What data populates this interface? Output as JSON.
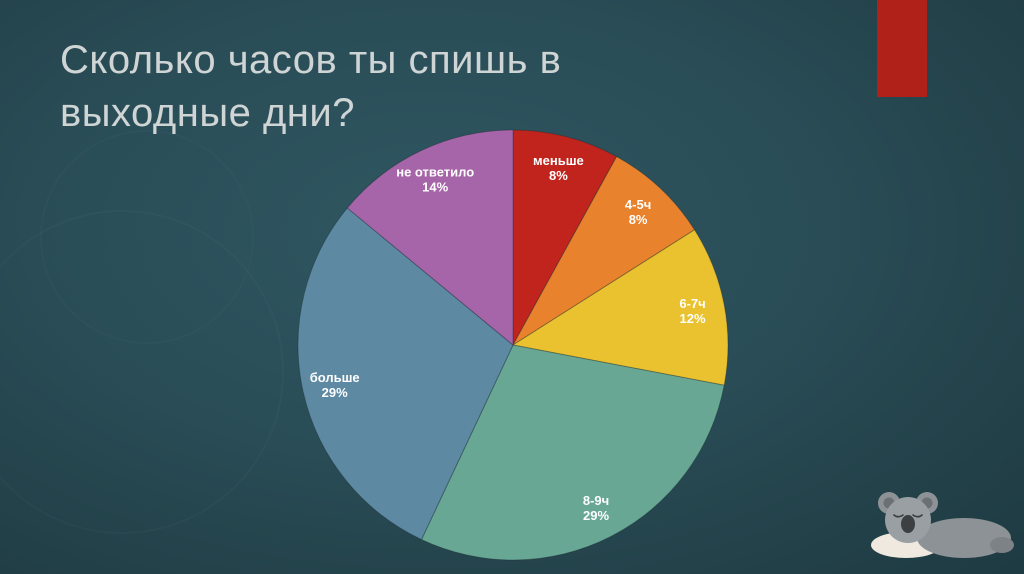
{
  "slide": {
    "title_line1": "Сколько часов ты спишь в",
    "title_line2": "выходные дни?",
    "title_color": "#cfd4d4",
    "background_color": "#294c56",
    "accent_bar_color": "#b02219"
  },
  "chart_data": {
    "type": "pie",
    "title": "Сколько часов ты спишь в выходные дни?",
    "start_angle_deg": 0,
    "direction": "clockwise",
    "legend": "none",
    "label_style": "inside-end, white, bold, label + percent",
    "label_color": "#ffffff",
    "slices": [
      {
        "label": "меньше",
        "value": 8,
        "percent_text": "8%",
        "color": "#c1241d"
      },
      {
        "label": "4-5ч",
        "value": 8,
        "percent_text": "8%",
        "color": "#e8822c"
      },
      {
        "label": "6-7ч",
        "value": 12,
        "percent_text": "12%",
        "color": "#eac22f"
      },
      {
        "label": "8-9ч",
        "value": 29,
        "percent_text": "29%",
        "color": "#67a794"
      },
      {
        "label": "больше",
        "value": 29,
        "percent_text": "29%",
        "color": "#5d89a3"
      },
      {
        "label": "не ответило",
        "value": 14,
        "percent_text": "14%",
        "color": "#a765a9"
      }
    ]
  },
  "decor": {
    "koala_label": "sleeping-koala-illustration"
  }
}
